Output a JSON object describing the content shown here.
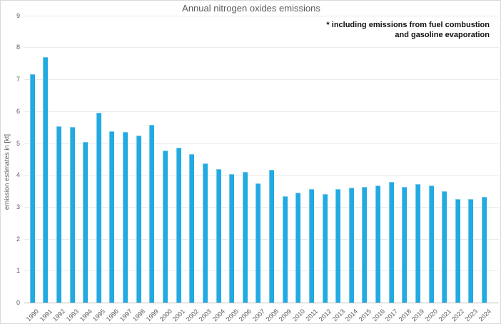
{
  "chart": {
    "title": "Annual nitrogen oxides emissions",
    "annotation_line1": "* including emissions from fuel combustion",
    "annotation_line2": "and gasoline evaporation",
    "y_axis_title": "emission estimates in [kt]"
  },
  "chart_data": {
    "type": "bar",
    "title": "Annual nitrogen oxides emissions",
    "annotation": "* including emissions from fuel combustion and gasoline evaporation",
    "categories": [
      "1990",
      "1991",
      "1992",
      "1993",
      "1994",
      "1995",
      "1996",
      "1997",
      "1998",
      "1999",
      "2000",
      "2001",
      "2002",
      "2003",
      "2004",
      "2005",
      "2006",
      "2007",
      "2008",
      "2009",
      "2010",
      "2011",
      "2012",
      "2013",
      "2014",
      "2015",
      "2016",
      "2017",
      "2018",
      "2019",
      "2020",
      "2021",
      "2022",
      "2023",
      "2024"
    ],
    "values": [
      7.15,
      7.7,
      5.52,
      5.51,
      5.03,
      5.95,
      5.38,
      5.35,
      5.23,
      5.58,
      4.76,
      4.86,
      4.65,
      4.37,
      4.18,
      4.03,
      4.1,
      3.74,
      4.16,
      3.33,
      3.45,
      3.55,
      3.39,
      3.56,
      3.6,
      3.63,
      3.66,
      3.78,
      3.63,
      3.71,
      3.66,
      3.5,
      3.25,
      3.24,
      3.3
    ],
    "xlabel": "",
    "ylabel": "emission estimates in [kt]",
    "ylim": [
      0,
      9
    ],
    "ytick_interval": 1,
    "grid": true,
    "legend_position": "none",
    "bar_color": "#22aae2"
  },
  "colors": {
    "bar": "#22aae2",
    "gridline": "#ebebeb",
    "axis_line": "#bfbfbf",
    "text_gray": "#595959",
    "annotation_text": "#111111",
    "border": "#d9d9d9",
    "background": "#ffffff"
  }
}
